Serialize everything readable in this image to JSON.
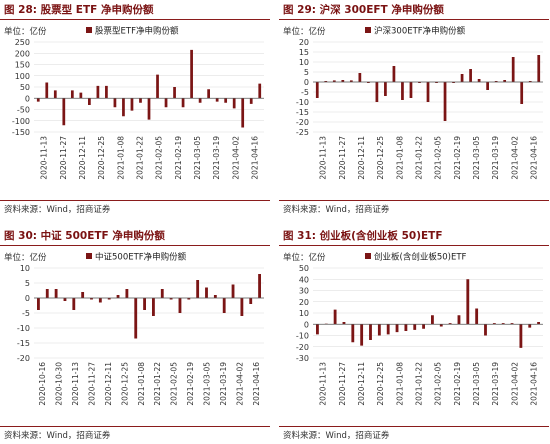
{
  "source_text": "资料来源：Wind，招商证券",
  "unit_label": "单位：亿份",
  "colors": {
    "bar": "#7b1515",
    "title": "#7a1212",
    "rule": "#8a1c1c",
    "grid": "#d9d9d9"
  },
  "chart_data": [
    {
      "type": "bar",
      "title": "图 28:  股票型 ETF 净申购份额",
      "legend": "股票型ETF净申购份额",
      "ylim": [
        -150,
        250
      ],
      "yticks": [
        -150,
        -100,
        -50,
        0,
        50,
        100,
        150,
        200,
        250
      ],
      "ygrid": true,
      "xtick_labels": [
        "2020-11-13",
        "2020-11-27",
        "2020-12-11",
        "2020-12-25",
        "2021-01-08",
        "2021-01-22",
        "2021-02-05",
        "2021-02-19",
        "2021-03-05",
        "2021-03-19",
        "2021-04-02",
        "2021-04-16"
      ],
      "values": [
        -15,
        70,
        35,
        -120,
        35,
        25,
        -30,
        55,
        55,
        -40,
        -80,
        -55,
        -20,
        -95,
        105,
        -40,
        50,
        -40,
        215,
        -20,
        40,
        -15,
        -20,
        -45,
        -130,
        -25,
        65
      ]
    },
    {
      "type": "bar",
      "title": "图 29:  沪深 300EFT 净申购份额",
      "legend": "沪深300ETF净申购份额",
      "ylim": [
        -25,
        20
      ],
      "yticks": [
        -25,
        -20,
        -15,
        -10,
        -5,
        0,
        5,
        10,
        15,
        20
      ],
      "ygrid": true,
      "xtick_labels": [
        "2020-11-13",
        "2020-11-27",
        "2020-12-11",
        "2020-12-25",
        "2021-01-08",
        "2021-01-22",
        "2021-02-05",
        "2021-02-19",
        "2021-03-05",
        "2021-03-19",
        "2021-04-02",
        "2021-04-16"
      ],
      "values": [
        -8,
        0.5,
        0.8,
        1,
        0.8,
        4.5,
        -0.5,
        -10,
        -7,
        8,
        -9,
        -8,
        -0.5,
        -10,
        -0.5,
        -19.5,
        -0.5,
        4,
        6.5,
        1.5,
        -4,
        0.5,
        1,
        12.5,
        -11,
        0.5,
        13.5
      ]
    },
    {
      "type": "bar",
      "title": "图 30:  中证 500ETF 净申购份额",
      "legend": "中证500ETF净申购份额",
      "ylim": [
        -20,
        10
      ],
      "yticks": [
        -20,
        -15,
        -10,
        -5,
        0,
        5,
        10
      ],
      "ygrid": true,
      "xtick_labels": [
        "2020-10-16",
        "2020-10-30",
        "2020-11-13",
        "2020-11-27",
        "2020-12-11",
        "2020-12-25",
        "2021-01-08",
        "2021-01-22",
        "2021-02-05",
        "2021-02-19",
        "2021-03-05",
        "2021-03-19",
        "2021-04-02",
        "2021-04-16"
      ],
      "values": [
        -4,
        3,
        3,
        -1,
        -4,
        2,
        -0.5,
        -1.5,
        -0.5,
        1,
        3,
        -13.5,
        -4,
        -6,
        3,
        -0.5,
        -5,
        -0.5,
        6,
        3.5,
        1,
        -5,
        4.5,
        -6,
        -2,
        8
      ]
    },
    {
      "type": "bar",
      "title": "图 31:  创业板(含创业板 50)ETF",
      "legend": "创业板(含创业板50)ETF",
      "ylim": [
        -30,
        50
      ],
      "yticks": [
        -30,
        -20,
        -10,
        0,
        10,
        20,
        30,
        40,
        50
      ],
      "ygrid": true,
      "xtick_labels": [
        "2020-11-13",
        "2020-11-27",
        "2020-12-11",
        "2020-12-25",
        "2021-01-08",
        "2021-01-22",
        "2021-02-05",
        "2021-02-19",
        "2021-03-05",
        "2021-03-19",
        "2021-04-02",
        "2021-04-16"
      ],
      "values": [
        -9,
        0.5,
        13,
        2,
        -16,
        -19,
        -14,
        -10,
        -9,
        -7,
        -6,
        -5,
        -4,
        8,
        -2,
        1,
        8,
        40,
        14,
        -10,
        1,
        1,
        1,
        -21,
        -3,
        2
      ]
    }
  ]
}
